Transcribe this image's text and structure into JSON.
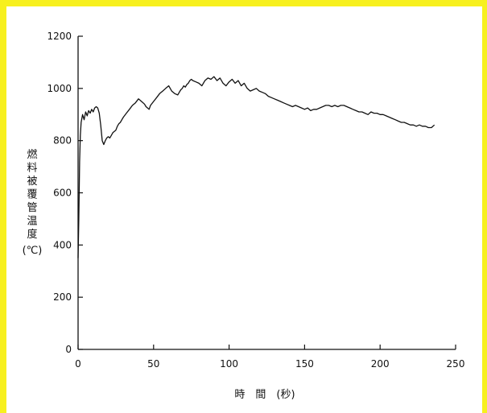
{
  "chart_data": {
    "type": "line",
    "title": "",
    "xlabel": "時　間　(秒)",
    "ylabel": "燃料被覆管温度",
    "ylabel_unit": "(℃)",
    "xlim": [
      0,
      250
    ],
    "ylim": [
      0,
      1200
    ],
    "x_ticks": [
      0,
      50,
      100,
      150,
      200,
      250
    ],
    "y_ticks": [
      0,
      200,
      400,
      600,
      800,
      1000,
      1200
    ],
    "grid": false,
    "legend": "none",
    "line_color": "#111111",
    "series": [
      {
        "x": [
          0,
          0.5,
          1,
          1.5,
          2,
          3,
          4,
          5,
          6,
          7,
          8,
          9,
          10,
          11,
          12,
          13,
          14,
          15,
          16,
          17,
          18,
          19,
          20,
          21,
          22,
          23,
          24,
          25,
          26,
          27,
          28,
          29,
          30,
          32,
          34,
          36,
          38,
          40,
          42,
          44,
          45,
          46,
          47,
          48,
          50,
          52,
          54,
          56,
          58,
          60,
          62,
          64,
          66,
          67,
          68,
          69,
          70,
          71,
          72,
          73,
          74,
          75,
          76,
          78,
          80,
          82,
          84,
          86,
          88,
          90,
          92,
          94,
          96,
          98,
          100,
          102,
          104,
          106,
          108,
          110,
          112,
          114,
          116,
          118,
          120,
          122,
          124,
          126,
          128,
          130,
          132,
          134,
          136,
          138,
          140,
          142,
          144,
          146,
          148,
          150,
          152,
          154,
          156,
          158,
          160,
          162,
          164,
          166,
          168,
          170,
          172,
          174,
          176,
          178,
          180,
          182,
          184,
          186,
          188,
          190,
          192,
          194,
          196,
          198,
          200,
          202,
          204,
          206,
          208,
          210,
          212,
          214,
          216,
          218,
          220,
          222,
          224,
          226,
          228,
          230,
          232,
          234,
          236
        ],
        "y": [
          350,
          500,
          720,
          820,
          870,
          900,
          880,
          910,
          895,
          915,
          905,
          920,
          910,
          925,
          930,
          925,
          905,
          860,
          800,
          785,
          800,
          810,
          815,
          810,
          820,
          830,
          835,
          840,
          855,
          865,
          870,
          880,
          890,
          905,
          920,
          935,
          945,
          960,
          950,
          940,
          930,
          925,
          920,
          935,
          950,
          965,
          980,
          990,
          1000,
          1010,
          990,
          980,
          975,
          985,
          995,
          1000,
          1010,
          1005,
          1015,
          1020,
          1030,
          1035,
          1030,
          1025,
          1020,
          1010,
          1030,
          1040,
          1035,
          1045,
          1030,
          1040,
          1020,
          1010,
          1025,
          1035,
          1020,
          1030,
          1010,
          1020,
          1000,
          990,
          995,
          1000,
          990,
          985,
          980,
          970,
          965,
          960,
          955,
          950,
          945,
          940,
          935,
          930,
          935,
          930,
          925,
          920,
          925,
          915,
          920,
          920,
          925,
          930,
          935,
          935,
          930,
          935,
          930,
          935,
          935,
          930,
          925,
          920,
          915,
          910,
          910,
          905,
          900,
          910,
          905,
          905,
          900,
          900,
          895,
          890,
          885,
          880,
          875,
          870,
          870,
          865,
          860,
          860,
          855,
          860,
          855,
          855,
          850,
          850,
          860
        ]
      }
    ]
  }
}
